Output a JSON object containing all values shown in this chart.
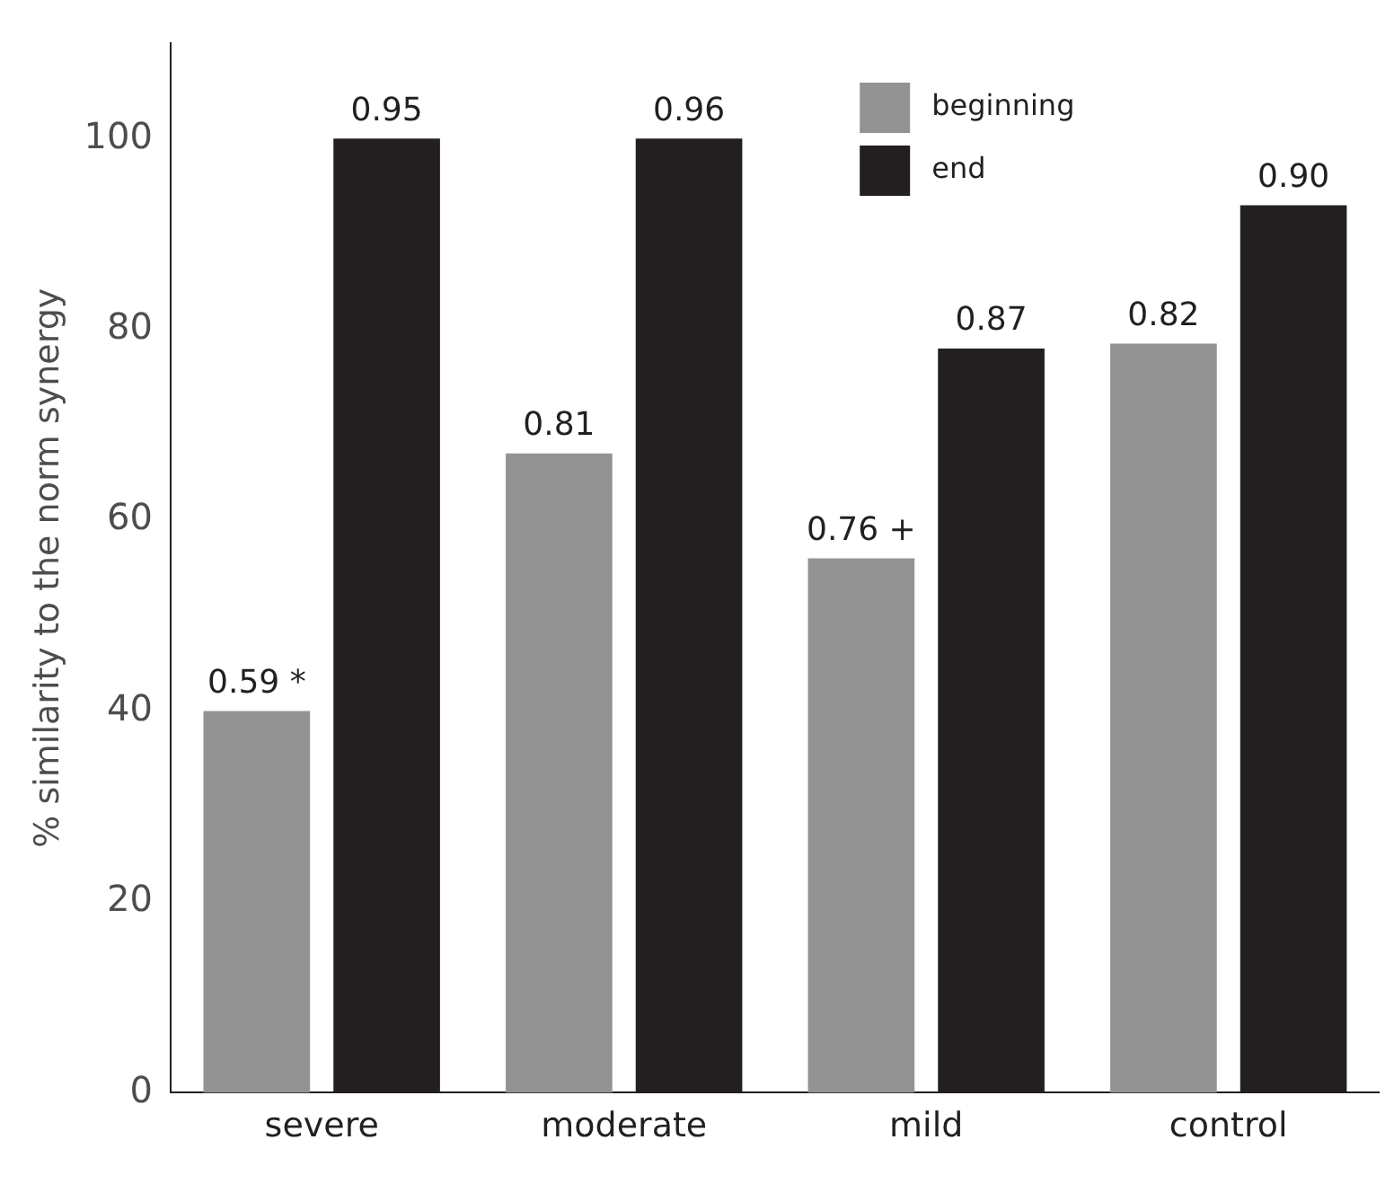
{
  "chart_data": {
    "type": "bar",
    "ylabel": "% similarity to the norm synergy",
    "categories": [
      "severe",
      "moderate",
      "mild",
      "control"
    ],
    "series": [
      {
        "name": "beginning",
        "color": "#939393",
        "values": [
          40,
          67,
          56,
          78.5
        ]
      },
      {
        "name": "end",
        "color": "#231f20",
        "values": [
          100,
          100,
          78,
          93
        ]
      }
    ],
    "annotations": [
      "0.59 *",
      "0.95",
      "0.81",
      "0.96",
      "0.76 +",
      "0.87",
      "0.82",
      "0.90"
    ],
    "ylim": [
      0,
      110
    ],
    "yticks": [
      0,
      20,
      40,
      60,
      80,
      100
    ],
    "grid": false,
    "legend": "top right"
  }
}
